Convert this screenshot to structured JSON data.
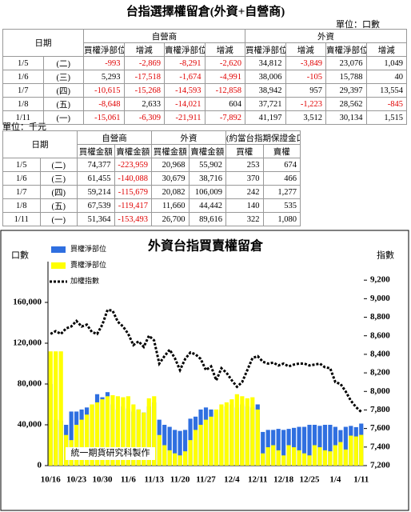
{
  "title": "台指選擇權留倉(外資+自營商)",
  "unit1": "單位：口數",
  "table1": {
    "date_header": "日期",
    "groups": [
      "自營商",
      "外資"
    ],
    "columns": [
      "買權淨部位",
      "增減",
      "賣權淨部位",
      "增減",
      "買權淨部位",
      "增減",
      "賣權淨部位",
      "增減"
    ],
    "rows": [
      [
        "1/5",
        "(二)",
        "-993",
        "-2,869",
        "-8,291",
        "-2,620",
        "34,812",
        "-3,849",
        "23,076",
        "1,049"
      ],
      [
        "1/6",
        "(三)",
        "5,293",
        "-17,518",
        "-1,674",
        "-4,991",
        "38,006",
        "-105",
        "15,788",
        "40"
      ],
      [
        "1/7",
        "(四)",
        "-10,615",
        "-15,268",
        "-14,593",
        "-12,858",
        "38,942",
        "957",
        "29,397",
        "13,554"
      ],
      [
        "1/8",
        "(五)",
        "-8,648",
        "2,633",
        "-14,021",
        "604",
        "37,721",
        "-1,223",
        "28,562",
        "-845"
      ],
      [
        "1/11",
        "(一)",
        "-15,061",
        "-6,309",
        "-21,911",
        "-7,892",
        "41,197",
        "3,512",
        "30,134",
        "1,515"
      ]
    ]
  },
  "unit2": "單位：千元",
  "table2": {
    "date_header": "日期",
    "groups": [
      "自營商",
      "外資",
      "(約當台指期保證金口數)"
    ],
    "columns": [
      "買權金額",
      "賣權金額",
      "買權金額",
      "賣權金額",
      "買權",
      "賣權"
    ],
    "rows": [
      [
        "1/5",
        "(二)",
        "74,377",
        "-223,959",
        "20,968",
        "55,902",
        "253",
        "674"
      ],
      [
        "1/6",
        "(三)",
        "61,455",
        "-140,088",
        "30,679",
        "38,716",
        "370",
        "466"
      ],
      [
        "1/7",
        "(四)",
        "59,214",
        "-115,679",
        "20,082",
        "106,009",
        "242",
        "1,277"
      ],
      [
        "1/8",
        "(五)",
        "67,539",
        "-119,417",
        "11,660",
        "44,442",
        "140",
        "535"
      ],
      [
        "1/11",
        "(一)",
        "51,364",
        "-153,493",
        "26,700",
        "89,616",
        "322",
        "1,080"
      ]
    ]
  },
  "chart_data": {
    "type": "bar_line",
    "title": "外資台指買賣權留倉",
    "y_label": "口數",
    "y2_label": "指數",
    "annotation": "統一期貨研究科製作",
    "legend": "upper left",
    "categories": [
      "10/16",
      null,
      null,
      null,
      null,
      "10/23",
      null,
      null,
      null,
      null,
      "10/30",
      null,
      null,
      null,
      null,
      "11/6",
      null,
      null,
      null,
      null,
      "11/13",
      null,
      null,
      null,
      null,
      "11/20",
      null,
      null,
      null,
      null,
      "11/27",
      null,
      null,
      null,
      null,
      "12/4",
      null,
      null,
      null,
      null,
      "12/11",
      null,
      null,
      null,
      null,
      "12/18",
      null,
      null,
      null,
      null,
      "12/25",
      null,
      null,
      null,
      null,
      "1/4",
      null,
      null,
      null,
      null,
      "1/11"
    ],
    "series": [
      {
        "name": "買權淨部位",
        "color": "#2f6fe0",
        "type": "bar",
        "values": [
          80000,
          45000,
          44000,
          40000,
          53000,
          53000,
          55000,
          57000,
          60000,
          70000,
          67000,
          72000,
          60000,
          55000,
          58000,
          56000,
          53000,
          55000,
          52000,
          58000,
          62000,
          45000,
          40000,
          38000,
          35000,
          34000,
          35000,
          46000,
          48000,
          55000,
          57000,
          55000,
          52000,
          55000,
          58000,
          60000,
          57000,
          60000,
          58000,
          57000,
          60000,
          33000,
          35000,
          35000,
          36000,
          35000,
          36000,
          37000,
          38000,
          38000,
          40000,
          40000,
          39000,
          40000,
          40000,
          38000,
          34812,
          38006,
          38942,
          37721,
          41197
        ]
      },
      {
        "name": "賣權淨部位",
        "color": "#ffff00",
        "type": "bar",
        "values": [
          112000,
          112000,
          112000,
          30000,
          25000,
          40000,
          45000,
          50000,
          60000,
          62000,
          65000,
          68000,
          69000,
          68000,
          67000,
          68000,
          60000,
          55000,
          52000,
          66000,
          68000,
          30000,
          20000,
          15000,
          12000,
          10000,
          14000,
          25000,
          35000,
          40000,
          45000,
          48000,
          55000,
          60000,
          62000,
          65000,
          70000,
          68000,
          66000,
          67000,
          55000,
          12000,
          18000,
          20000,
          15000,
          10000,
          20000,
          18000,
          15000,
          12000,
          10000,
          20000,
          18000,
          15000,
          14000,
          20000,
          23076,
          15788,
          29397,
          28562,
          30134
        ]
      },
      {
        "name": "加權指數",
        "color": "#000000",
        "type": "line",
        "axis": "y2",
        "values": [
          8620,
          8650,
          8620,
          8680,
          8700,
          8760,
          8700,
          8720,
          8640,
          8620,
          8720,
          8880,
          8870,
          8750,
          8700,
          8620,
          8500,
          8540,
          8480,
          8600,
          8550,
          8300,
          8380,
          8450,
          8360,
          8230,
          8350,
          8420,
          8400,
          8350,
          8230,
          8270,
          8120,
          8250,
          8200,
          8120,
          8050,
          8100,
          8230,
          8360,
          8380,
          8320,
          8300,
          8310,
          8280,
          8300,
          8270,
          8290,
          8300,
          8300,
          8280,
          8290,
          8300,
          8260,
          8250,
          8100,
          8080,
          8000,
          7900,
          7830,
          7780
        ]
      }
    ],
    "ylim": [
      0,
      200000
    ],
    "yticks": [
      0,
      {
        "value": 40000,
        "label": "40,000"
      },
      {
        "value": 80000,
        "label": "80,000"
      },
      {
        "value": 120000,
        "label": "120,000"
      },
      {
        "value": 160000,
        "label": "160,000"
      }
    ],
    "y2lim": [
      7200,
      9400
    ],
    "y2ticks": [
      {
        "value": 7200,
        "label": "7,200"
      },
      {
        "value": 7400,
        "label": "7,400"
      },
      {
        "value": 7600,
        "label": "7,600"
      },
      {
        "value": 7800,
        "label": "7,800"
      },
      {
        "value": 8000,
        "label": "8,000"
      },
      {
        "value": 8200,
        "label": "8,200"
      },
      {
        "value": 8400,
        "label": "8,400"
      },
      {
        "value": 8600,
        "label": "8,600"
      },
      {
        "value": 8800,
        "label": "8,800"
      },
      {
        "value": 9000,
        "label": "9,000"
      },
      {
        "value": 9200,
        "label": "9,200"
      }
    ]
  }
}
